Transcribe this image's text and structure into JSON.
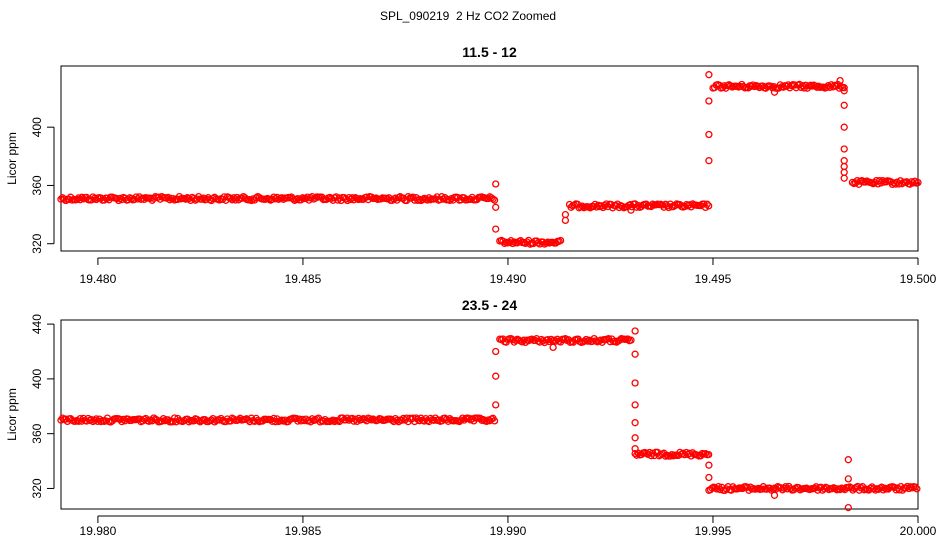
{
  "figure": {
    "title": "SPL_090219  2 Hz CO2 Zoomed"
  },
  "colors": {
    "points": "#ff0000"
  },
  "chart_data": [
    {
      "type": "scatter",
      "title": "11.5 - 12",
      "xlabel": "",
      "ylabel": "Licor ppm",
      "xlim": [
        19.4791,
        19.5
      ],
      "ylim": [
        315,
        442
      ],
      "xticks": [
        "19.480",
        "19.485",
        "19.490",
        "19.495",
        "19.500"
      ],
      "xtick_values": [
        19.48,
        19.485,
        19.49,
        19.495,
        19.5
      ],
      "yticks": [
        "320",
        "360",
        "400"
      ],
      "ytick_values": [
        320,
        360,
        400
      ],
      "segments": [
        {
          "x": [
            19.4791,
            19.4897
          ],
          "y": 351
        },
        {
          "x": [
            19.4898,
            19.4913
          ],
          "y": 321
        },
        {
          "x": [
            19.4915,
            19.4949
          ],
          "y": 346
        },
        {
          "x": [
            19.495,
            19.4982
          ],
          "y": 428
        },
        {
          "x": [
            19.4984,
            19.5
          ],
          "y": 362
        }
      ],
      "transitions": [
        {
          "x": 19.4897,
          "y": [
            361,
            345,
            330
          ]
        },
        {
          "x": 19.4914,
          "y": [
            336,
            340
          ]
        },
        {
          "x": 19.4949,
          "y": [
            377,
            395,
            418,
            436
          ]
        },
        {
          "x": 19.4982,
          "y": [
            425,
            415,
            400,
            385,
            377,
            373,
            365,
            369
          ]
        }
      ],
      "outliers": [
        {
          "x": 19.493,
          "y": 343
        },
        {
          "x": 19.4965,
          "y": 424
        },
        {
          "x": 19.4981,
          "y": 432
        }
      ]
    },
    {
      "type": "scatter",
      "title": "23.5 - 24",
      "xlabel": "",
      "ylabel": "Licor ppm",
      "xlim": [
        19.9791,
        20.0
      ],
      "ylim": [
        305,
        443
      ],
      "xticks": [
        "19.980",
        "19.985",
        "19.990",
        "19.995",
        "20.000"
      ],
      "xtick_values": [
        19.98,
        19.985,
        19.99,
        19.995,
        20.0
      ],
      "yticks": [
        "320",
        "360",
        "400",
        "440"
      ],
      "ytick_values": [
        320,
        360,
        400,
        440
      ],
      "segments": [
        {
          "x": [
            19.9791,
            19.9897
          ],
          "y": 370
        },
        {
          "x": [
            19.9898,
            19.993
          ],
          "y": 428
        },
        {
          "x": [
            19.9931,
            19.9949
          ],
          "y": 345
        },
        {
          "x": [
            19.9949,
            20.0
          ],
          "y": 320
        }
      ],
      "transitions": [
        {
          "x": 19.9897,
          "y": [
            381,
            402,
            420
          ]
        },
        {
          "x": 19.9931,
          "y": [
            435,
            418,
            397,
            381,
            368,
            357,
            349
          ]
        },
        {
          "x": 19.9949,
          "y": [
            337,
            328
          ]
        }
      ],
      "outliers": [
        {
          "x": 19.9911,
          "y": 423
        },
        {
          "x": 19.9965,
          "y": 315
        },
        {
          "x": 19.9983,
          "y": 341
        },
        {
          "x": 19.9983,
          "y": 306
        },
        {
          "x": 19.9983,
          "y": 327
        }
      ]
    }
  ]
}
